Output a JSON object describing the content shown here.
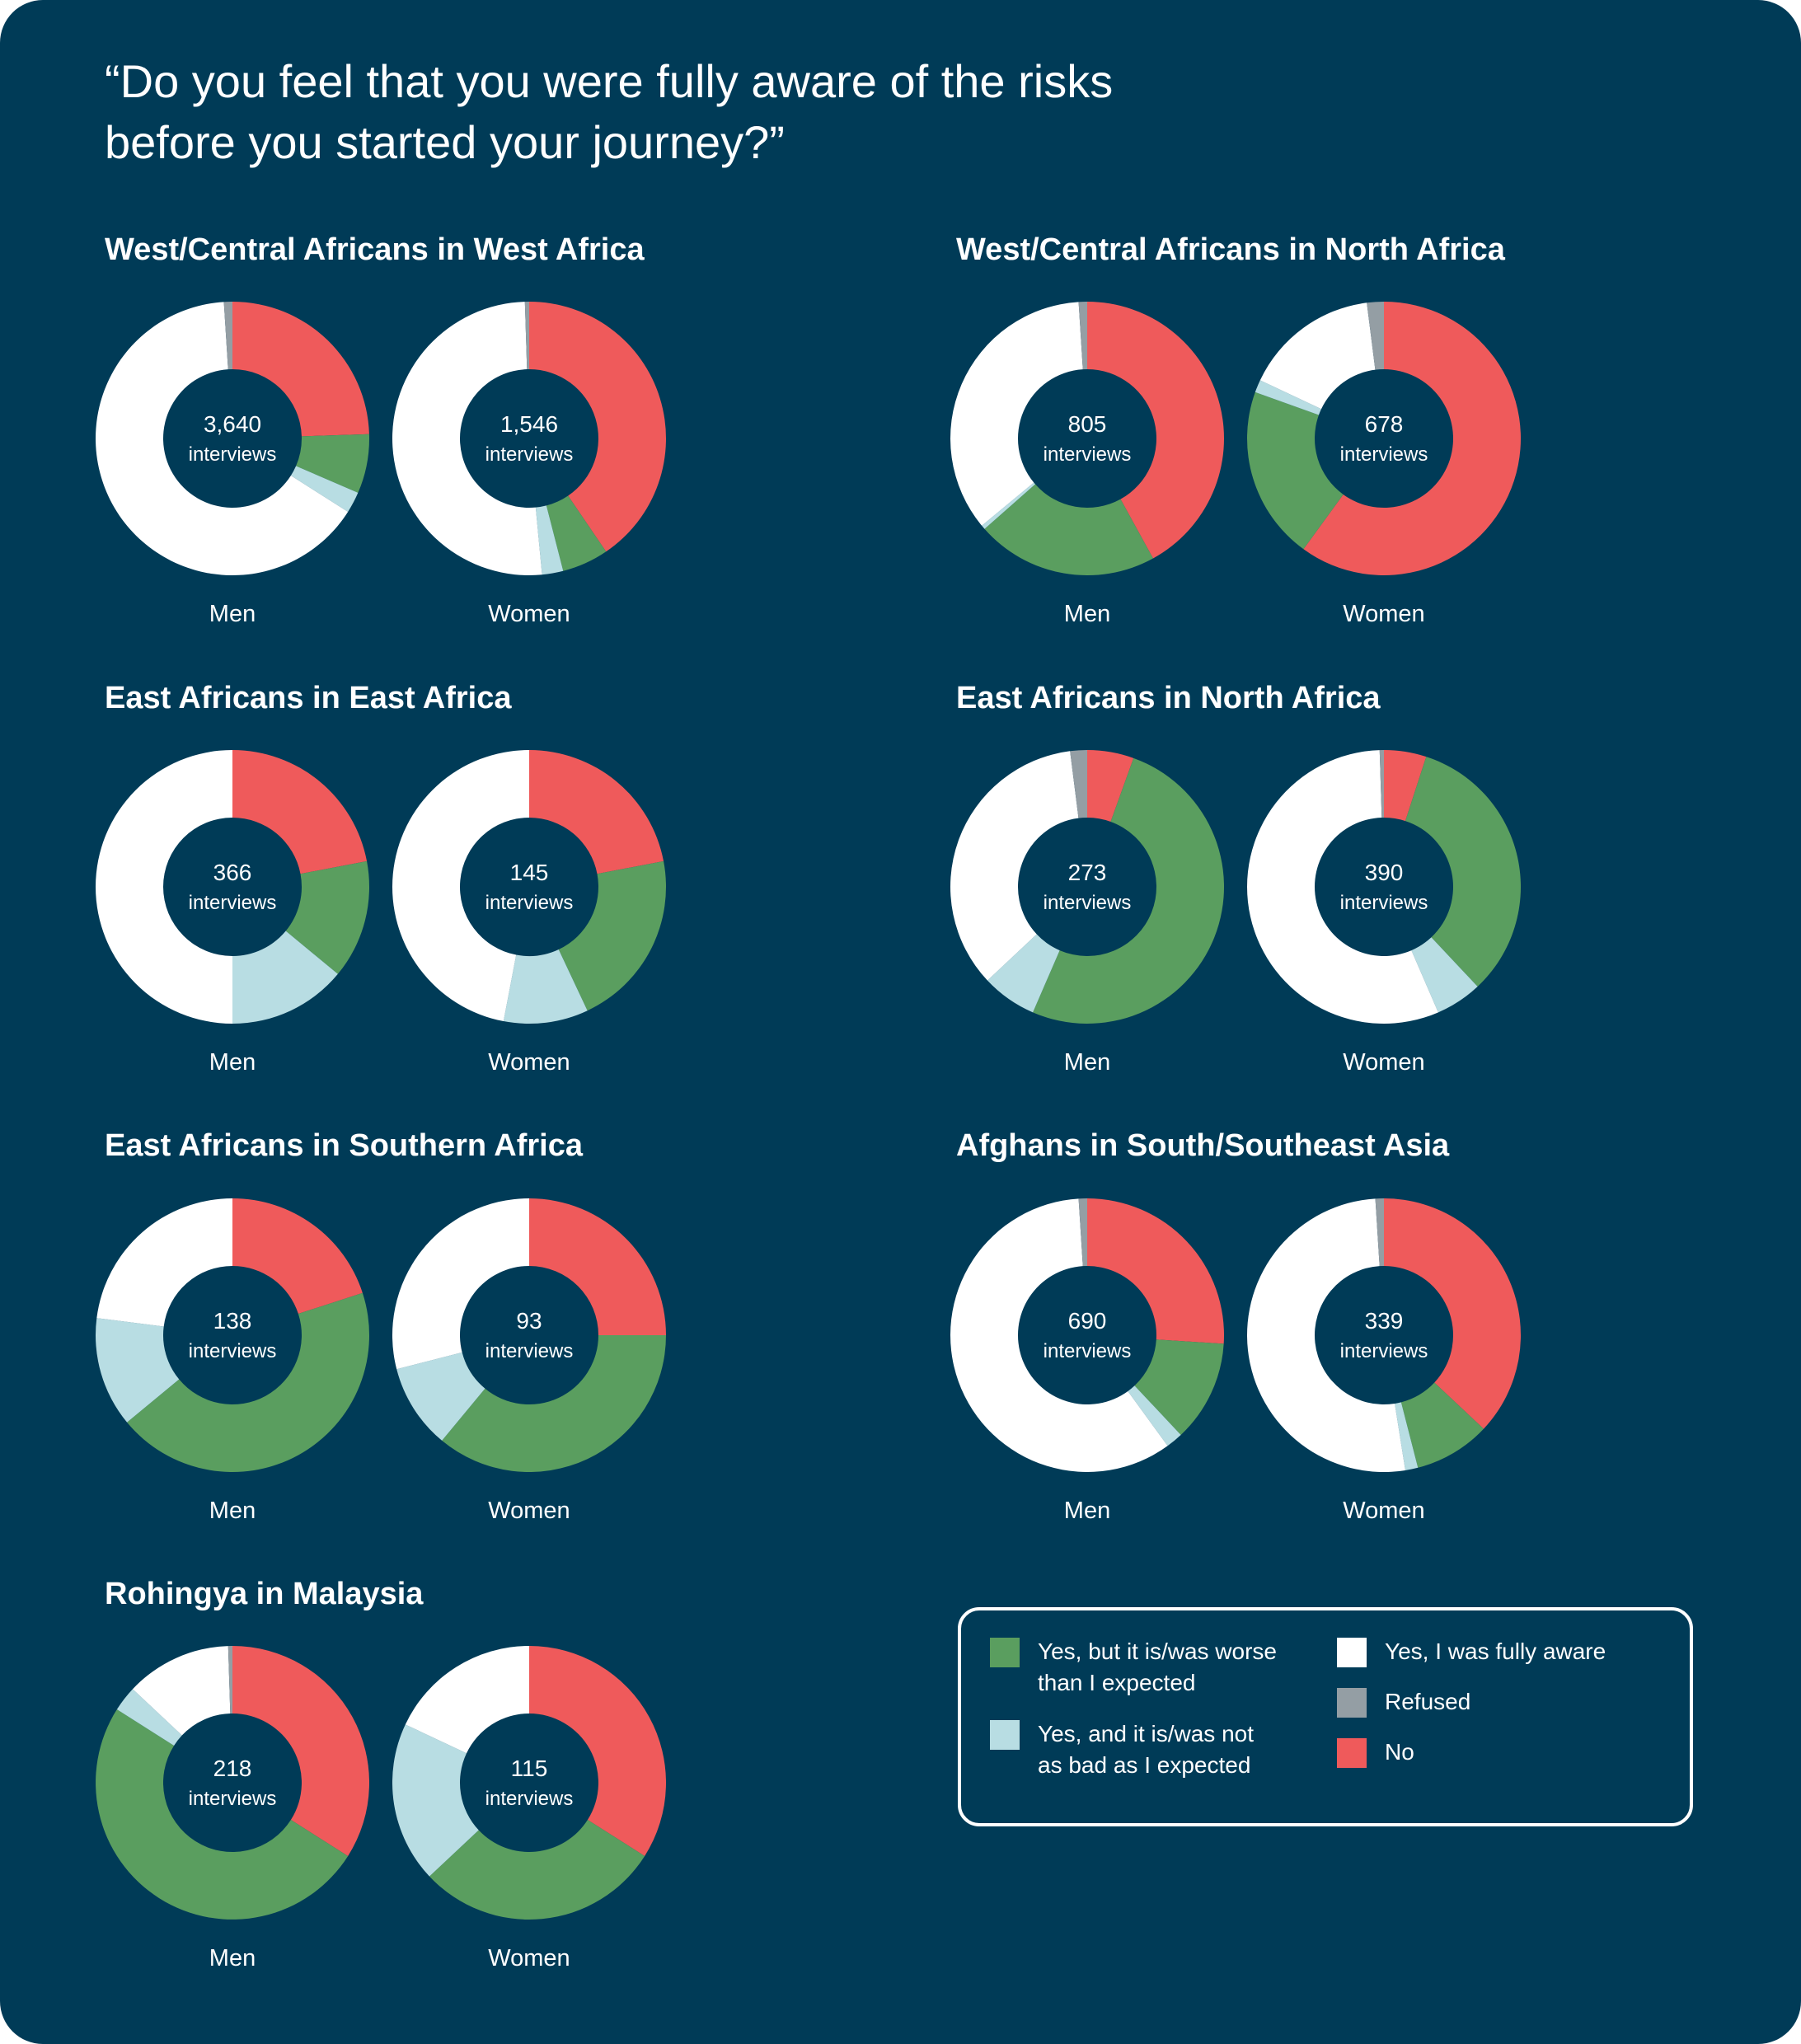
{
  "title_line1": "“Do you feel that you were fully aware of the risks",
  "title_line2": "before you started your journey?”",
  "colors": {
    "background": "#003b57",
    "worse": "#5a9e5f",
    "not_as_bad": "#b8dde3",
    "fully_aware": "#ffffff",
    "refused": "#949ea4",
    "no": "#ef5a5b"
  },
  "legend": {
    "items": [
      {
        "key": "worse",
        "label_line1": "Yes, but it is/was worse",
        "label_line2": "than I expected",
        "color": "#5a9e5f"
      },
      {
        "key": "not_as_bad",
        "label_line1": "Yes, and it is/was not",
        "label_line2": "as bad as I expected",
        "color": "#b8dde3"
      },
      {
        "key": "fully_aware",
        "label_line1": "Yes, I was fully aware",
        "label_line2": "",
        "color": "#ffffff"
      },
      {
        "key": "refused",
        "label_line1": "Refused",
        "label_line2": "",
        "color": "#949ea4"
      },
      {
        "key": "no",
        "label_line1": "No",
        "label_line2": "",
        "color": "#ef5a5b"
      }
    ]
  },
  "interviews_label": "interviews",
  "chart_data": {
    "type": "donut",
    "slice_order": [
      "no",
      "worse",
      "not_as_bad",
      "fully_aware",
      "refused"
    ],
    "units": "percent of respondents",
    "panels": [
      {
        "title": "West/Central Africans in West Africa",
        "charts": [
          {
            "label": "Men",
            "interviews": "3,640",
            "no": 24.5,
            "worse": 7,
            "not_as_bad": 2.5,
            "fully_aware": 65,
            "refused": 1
          },
          {
            "label": "Women",
            "interviews": "1,546",
            "no": 40.5,
            "worse": 5.5,
            "not_as_bad": 2.5,
            "fully_aware": 51,
            "refused": 0.5
          }
        ]
      },
      {
        "title": "West/Central Africans in North Africa",
        "charts": [
          {
            "label": "Men",
            "interviews": "805",
            "no": 42,
            "worse": 21.5,
            "not_as_bad": 0.5,
            "fully_aware": 35,
            "refused": 1
          },
          {
            "label": "Women",
            "interviews": "678",
            "no": 60,
            "worse": 20.5,
            "not_as_bad": 1.5,
            "fully_aware": 16,
            "refused": 2
          }
        ]
      },
      {
        "title": "East Africans in East Africa",
        "charts": [
          {
            "label": "Men",
            "interviews": "366",
            "no": 22,
            "worse": 14,
            "not_as_bad": 14,
            "fully_aware": 50,
            "refused": 0
          },
          {
            "label": "Women",
            "interviews": "145",
            "no": 22,
            "worse": 21,
            "not_as_bad": 10,
            "fully_aware": 47,
            "refused": 0
          }
        ]
      },
      {
        "title": "East Africans in North Africa",
        "charts": [
          {
            "label": "Men",
            "interviews": "273",
            "no": 5.5,
            "worse": 51,
            "not_as_bad": 6.5,
            "fully_aware": 35,
            "refused": 2
          },
          {
            "label": "Women",
            "interviews": "390",
            "no": 5,
            "worse": 33,
            "not_as_bad": 5.5,
            "fully_aware": 56,
            "refused": 0.5
          }
        ]
      },
      {
        "title": "East Africans in Southern Africa",
        "charts": [
          {
            "label": "Men",
            "interviews": "138",
            "no": 20,
            "worse": 44,
            "not_as_bad": 13,
            "fully_aware": 23,
            "refused": 0
          },
          {
            "label": "Women",
            "interviews": "93",
            "no": 25,
            "worse": 36,
            "not_as_bad": 10,
            "fully_aware": 29,
            "refused": 0
          }
        ]
      },
      {
        "title": "Afghans in South/Southeast Asia",
        "charts": [
          {
            "label": "Men",
            "interviews": "690",
            "no": 26,
            "worse": 12,
            "not_as_bad": 2,
            "fully_aware": 59,
            "refused": 1
          },
          {
            "label": "Women",
            "interviews": "339",
            "no": 37,
            "worse": 9,
            "not_as_bad": 1.5,
            "fully_aware": 51.5,
            "refused": 1
          }
        ]
      },
      {
        "title": "Rohingya in Malaysia",
        "charts": [
          {
            "label": "Men",
            "interviews": "218",
            "no": 34,
            "worse": 50,
            "not_as_bad": 3,
            "fully_aware": 12.5,
            "refused": 0.5
          },
          {
            "label": "Women",
            "interviews": "115",
            "no": 34,
            "worse": 29,
            "not_as_bad": 19,
            "fully_aware": 18,
            "refused": 0
          }
        ]
      }
    ]
  }
}
